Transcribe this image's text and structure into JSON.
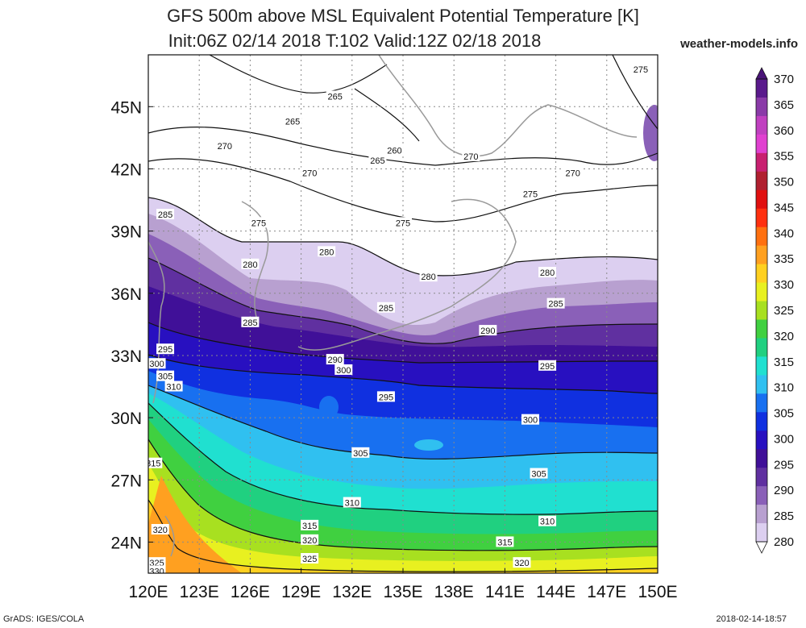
{
  "title_line1": "GFS 500m above MSL Equivalent Potential Temperature [K]",
  "title_line2": "Init:06Z 02/14 2018 T:102 Valid:12Z 02/18 2018",
  "brand": "weather-models.info",
  "credit": "GrADS: IGES/COLA",
  "timestamp": "2018-02-14-18:57",
  "map": {
    "lon_range": [
      120,
      150
    ],
    "lat_range": [
      22.5,
      47.5
    ],
    "lon_ticks": [
      "120E",
      "123E",
      "126E",
      "129E",
      "132E",
      "135E",
      "138E",
      "141E",
      "144E",
      "147E",
      "150E"
    ],
    "lat_ticks": [
      "24N",
      "27N",
      "30N",
      "33N",
      "36N",
      "39N",
      "42N",
      "45N"
    ],
    "lon_tick_values": [
      120,
      123,
      126,
      129,
      132,
      135,
      138,
      141,
      144,
      147,
      150
    ],
    "lat_tick_values": [
      24,
      27,
      30,
      33,
      36,
      39,
      42,
      45
    ],
    "grid": "dotted",
    "contour_labels": [
      {
        "text": "265",
        "lon": 131.0,
        "lat": 45.5
      },
      {
        "text": "265",
        "lon": 128.5,
        "lat": 44.3
      },
      {
        "text": "260",
        "lon": 134.5,
        "lat": 42.9
      },
      {
        "text": "265",
        "lon": 133.5,
        "lat": 42.4
      },
      {
        "text": "270",
        "lon": 124.5,
        "lat": 43.1
      },
      {
        "text": "270",
        "lon": 129.5,
        "lat": 41.8
      },
      {
        "text": "270",
        "lon": 139.0,
        "lat": 42.6
      },
      {
        "text": "270",
        "lon": 145.0,
        "lat": 41.8
      },
      {
        "text": "275",
        "lon": 149.0,
        "lat": 46.8
      },
      {
        "text": "275",
        "lon": 142.5,
        "lat": 40.8
      },
      {
        "text": "275",
        "lon": 135.0,
        "lat": 39.4
      },
      {
        "text": "275",
        "lon": 126.5,
        "lat": 39.4
      },
      {
        "text": "280",
        "lon": 130.5,
        "lat": 38.0
      },
      {
        "text": "280",
        "lon": 126.0,
        "lat": 37.4
      },
      {
        "text": "280",
        "lon": 136.5,
        "lat": 36.8
      },
      {
        "text": "280",
        "lon": 143.5,
        "lat": 37.0
      },
      {
        "text": "285",
        "lon": 121.0,
        "lat": 39.8
      },
      {
        "text": "285",
        "lon": 126.0,
        "lat": 34.6
      },
      {
        "text": "285",
        "lon": 134.0,
        "lat": 35.3
      },
      {
        "text": "285",
        "lon": 144.0,
        "lat": 35.5
      },
      {
        "text": "290",
        "lon": 131.0,
        "lat": 32.8
      },
      {
        "text": "290",
        "lon": 140.0,
        "lat": 34.2
      },
      {
        "text": "295",
        "lon": 121.0,
        "lat": 33.3
      },
      {
        "text": "295",
        "lon": 134.0,
        "lat": 31.0
      },
      {
        "text": "295",
        "lon": 143.5,
        "lat": 32.5
      },
      {
        "text": "300",
        "lon": 120.5,
        "lat": 32.6
      },
      {
        "text": "300",
        "lon": 131.5,
        "lat": 32.3
      },
      {
        "text": "300",
        "lon": 142.5,
        "lat": 29.9
      },
      {
        "text": "305",
        "lon": 121.0,
        "lat": 32.0
      },
      {
        "text": "305",
        "lon": 132.5,
        "lat": 28.3
      },
      {
        "text": "305",
        "lon": 143.0,
        "lat": 27.3
      },
      {
        "text": "310",
        "lon": 121.5,
        "lat": 31.5
      },
      {
        "text": "310",
        "lon": 132.0,
        "lat": 25.9
      },
      {
        "text": "310",
        "lon": 143.5,
        "lat": 25.0
      },
      {
        "text": "315",
        "lon": 120.3,
        "lat": 27.8
      },
      {
        "text": "315",
        "lon": 129.5,
        "lat": 24.8
      },
      {
        "text": "315",
        "lon": 141.0,
        "lat": 24.0
      },
      {
        "text": "320",
        "lon": 120.7,
        "lat": 24.6
      },
      {
        "text": "320",
        "lon": 129.5,
        "lat": 24.1
      },
      {
        "text": "320",
        "lon": 142.0,
        "lat": 23.0
      },
      {
        "text": "325",
        "lon": 120.5,
        "lat": 23.0
      },
      {
        "text": "325",
        "lon": 129.5,
        "lat": 23.2
      },
      {
        "text": "330",
        "lon": 120.5,
        "lat": 22.6
      }
    ]
  },
  "colorbar": {
    "labels": [
      "370",
      "365",
      "360",
      "355",
      "350",
      "345",
      "340",
      "335",
      "330",
      "325",
      "320",
      "315",
      "310",
      "305",
      "300",
      "295",
      "290",
      "285",
      "280"
    ],
    "colors": [
      "#5a1a8c",
      "#8a3aa8",
      "#c040c0",
      "#e040d0",
      "#c82070",
      "#b02030",
      "#e01010",
      "#ff3010",
      "#ff7010",
      "#ffa020",
      "#ffd020",
      "#e8f020",
      "#a8e020",
      "#40d040",
      "#20d080",
      "#20e0d0",
      "#30c0f0",
      "#1870f0",
      "#1030e0",
      "#2810c0",
      "#401098",
      "#6030a0",
      "#8a60b8",
      "#b8a0d0",
      "#dccff0"
    ],
    "extend": "both"
  }
}
